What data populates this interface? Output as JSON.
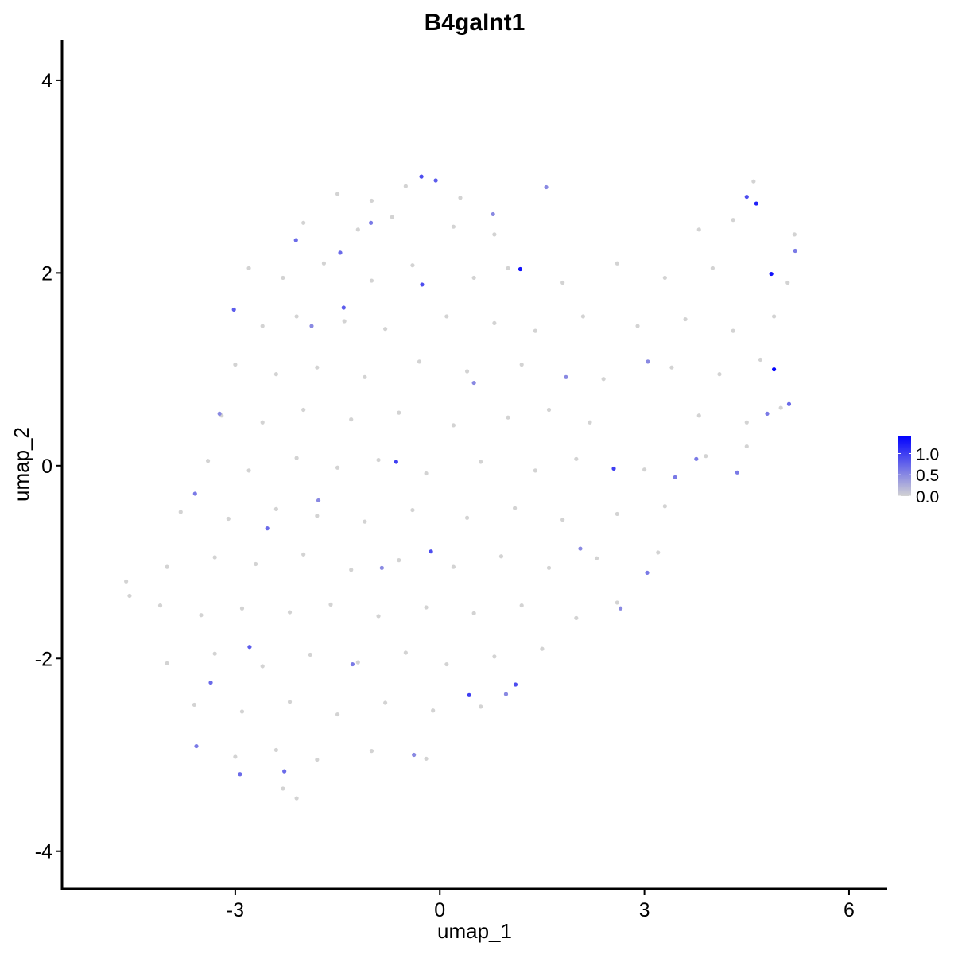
{
  "chart_data": {
    "type": "scatter",
    "title": "B4galnt1",
    "xlabel": "umap_1",
    "ylabel": "umap_2",
    "xlim": [
      -5.54,
      6.56
    ],
    "ylim": [
      -4.39,
      4.42
    ],
    "xticks": [
      -3,
      0,
      3,
      6
    ],
    "yticks": [
      -4,
      -2,
      0,
      2,
      4
    ],
    "colors": [
      "#d3d3d3",
      "#0000ff"
    ],
    "colorlim": [
      0,
      1.42
    ],
    "colorticks": [
      {
        "value": 0,
        "label": "0.0"
      },
      {
        "value": 0.5,
        "label": "0.5"
      },
      {
        "value": 1,
        "label": "1.0"
      }
    ],
    "x": [
      -1.5,
      -1.0,
      -0.5,
      0.3,
      4.6,
      -2.0,
      -1.2,
      -0.7,
      0.2,
      0.8,
      3.8,
      4.3,
      5.2,
      -2.8,
      -2.3,
      -1.7,
      -1.0,
      -0.4,
      0.5,
      1.0,
      1.8,
      2.6,
      3.3,
      4.0,
      5.1,
      -2.6,
      -2.1,
      -1.4,
      -0.8,
      0.1,
      0.8,
      1.4,
      2.1,
      2.9,
      3.6,
      4.3,
      4.9,
      -3.0,
      -2.4,
      -1.8,
      -1.1,
      -0.3,
      0.4,
      1.2,
      2.4,
      3.4,
      4.1,
      4.7,
      -3.2,
      -2.6,
      -2.0,
      -1.3,
      -0.6,
      0.2,
      1.0,
      1.6,
      2.2,
      3.8,
      4.5,
      5.0,
      -3.4,
      -2.8,
      -2.1,
      -1.5,
      -0.9,
      -0.2,
      0.6,
      1.4,
      2.0,
      3.0,
      3.9,
      4.5,
      -3.8,
      -3.1,
      -2.4,
      -1.8,
      -1.1,
      -0.4,
      0.4,
      1.1,
      1.8,
      2.6,
      3.3,
      -4.0,
      -3.3,
      -2.7,
      -2.0,
      -1.3,
      -0.6,
      0.2,
      0.9,
      1.6,
      2.3,
      3.2,
      -4.1,
      -3.5,
      -2.9,
      -2.2,
      -1.6,
      -0.9,
      -0.2,
      0.5,
      1.2,
      2.0,
      2.6,
      -4.0,
      -3.3,
      -2.6,
      -1.9,
      -1.2,
      -0.5,
      0.1,
      0.8,
      1.5,
      -3.6,
      -2.9,
      -2.2,
      -1.5,
      -0.8,
      -0.1,
      0.6,
      -3.0,
      -2.4,
      -1.8,
      -1.0,
      -0.2,
      -4.6,
      -4.55,
      -2.1,
      -2.3,
      0.5,
      0.78,
      1.56,
      -1.46,
      -1.01,
      -2.11,
      -1.88,
      -3.23,
      1.85,
      3.05,
      3.45,
      4.36,
      0.97,
      -1.78,
      -0.85,
      2.06,
      -0.38,
      4.8,
      5.21,
      3.76,
      5.12,
      -1.28,
      -3.57,
      -2.53,
      -2.28,
      -3.59,
      2.65,
      -1.41,
      -3.02,
      -2.79,
      -3.36,
      -2.93,
      3.04,
      -0.26,
      -0.06,
      -0.27,
      4.5,
      -0.64,
      -0.13,
      2.55,
      1.11,
      0.43,
      4.64,
      1.18,
      4.86,
      4.9
    ],
    "y": [
      2.82,
      2.75,
      2.9,
      2.78,
      2.95,
      2.52,
      2.45,
      2.58,
      2.48,
      2.4,
      2.45,
      2.55,
      2.4,
      2.05,
      1.95,
      2.1,
      1.92,
      2.08,
      1.95,
      2.05,
      1.9,
      2.1,
      1.95,
      2.05,
      1.9,
      1.45,
      1.55,
      1.5,
      1.42,
      1.55,
      1.48,
      1.4,
      1.55,
      1.45,
      1.52,
      1.4,
      1.55,
      1.05,
      0.95,
      1.02,
      0.92,
      1.08,
      0.98,
      1.05,
      0.9,
      1.02,
      0.95,
      1.1,
      0.52,
      0.45,
      0.58,
      0.48,
      0.55,
      0.42,
      0.5,
      0.58,
      0.45,
      0.52,
      0.45,
      0.6,
      0.05,
      -0.05,
      0.08,
      -0.02,
      0.06,
      -0.08,
      0.04,
      -0.05,
      0.07,
      -0.04,
      0.1,
      0.2,
      -0.48,
      -0.55,
      -0.45,
      -0.52,
      -0.58,
      -0.46,
      -0.54,
      -0.44,
      -0.56,
      -0.5,
      -0.42,
      -1.05,
      -0.95,
      -1.02,
      -0.92,
      -1.08,
      -0.98,
      -1.05,
      -0.94,
      -1.06,
      -0.96,
      -0.9,
      -1.45,
      -1.55,
      -1.48,
      -1.52,
      -1.44,
      -1.56,
      -1.47,
      -1.53,
      -1.45,
      -1.58,
      -1.42,
      -2.05,
      -1.95,
      -2.08,
      -1.96,
      -2.04,
      -1.94,
      -2.06,
      -1.98,
      -1.9,
      -2.48,
      -2.55,
      -2.45,
      -2.58,
      -2.46,
      -2.54,
      -2.5,
      -3.02,
      -2.95,
      -3.05,
      -2.96,
      -3.04,
      -1.2,
      -1.35,
      -3.45,
      -3.35,
      0.86,
      2.61,
      2.89,
      2.21,
      2.52,
      2.34,
      1.45,
      0.54,
      0.92,
      1.08,
      -0.12,
      -0.07,
      -2.37,
      -0.36,
      -1.06,
      -0.86,
      -3.0,
      0.54,
      2.23,
      0.07,
      0.64,
      -2.06,
      -2.91,
      -0.65,
      -3.17,
      -0.29,
      -1.48,
      1.64,
      1.62,
      -1.88,
      -2.25,
      -3.2,
      -1.11,
      1.88,
      2.96,
      3.0,
      2.79,
      0.04,
      -0.89,
      -0.03,
      -2.27,
      -2.38,
      2.72,
      2.04,
      1.99,
      1.0
    ],
    "expression": [
      0,
      0,
      0,
      0,
      0,
      0,
      0,
      0,
      0,
      0,
      0,
      0,
      0,
      0,
      0,
      0,
      0,
      0,
      0,
      0,
      0,
      0,
      0,
      0,
      0,
      0,
      0,
      0,
      0,
      0,
      0,
      0,
      0,
      0,
      0,
      0,
      0,
      0,
      0,
      0,
      0,
      0,
      0,
      0,
      0,
      0,
      0,
      0,
      0,
      0,
      0,
      0,
      0,
      0,
      0,
      0,
      0,
      0,
      0,
      0,
      0,
      0,
      0,
      0,
      0,
      0,
      0,
      0,
      0,
      0,
      0,
      0,
      0,
      0,
      0,
      0,
      0,
      0,
      0,
      0,
      0,
      0,
      0,
      0,
      0,
      0,
      0,
      0,
      0,
      0,
      0,
      0,
      0,
      0,
      0,
      0,
      0,
      0,
      0,
      0,
      0,
      0,
      0,
      0,
      0,
      0,
      0,
      0,
      0,
      0,
      0,
      0,
      0,
      0,
      0,
      0,
      0,
      0,
      0,
      0,
      0,
      0,
      0,
      0,
      0,
      0,
      0,
      0,
      0,
      0,
      0.5,
      0.5,
      0.5,
      0.7,
      0.6,
      0.7,
      0.5,
      0.5,
      0.5,
      0.5,
      0.6,
      0.6,
      0.5,
      0.5,
      0.5,
      0.5,
      0.5,
      0.6,
      0.6,
      0.6,
      0.7,
      0.6,
      0.6,
      0.7,
      0.7,
      0.6,
      0.5,
      0.8,
      0.8,
      0.8,
      0.7,
      0.7,
      0.6,
      0.9,
      0.8,
      0.9,
      0.9,
      1.0,
      0.9,
      1.0,
      0.9,
      1.0,
      1.2,
      1.3,
      1.3,
      1.4
    ]
  }
}
